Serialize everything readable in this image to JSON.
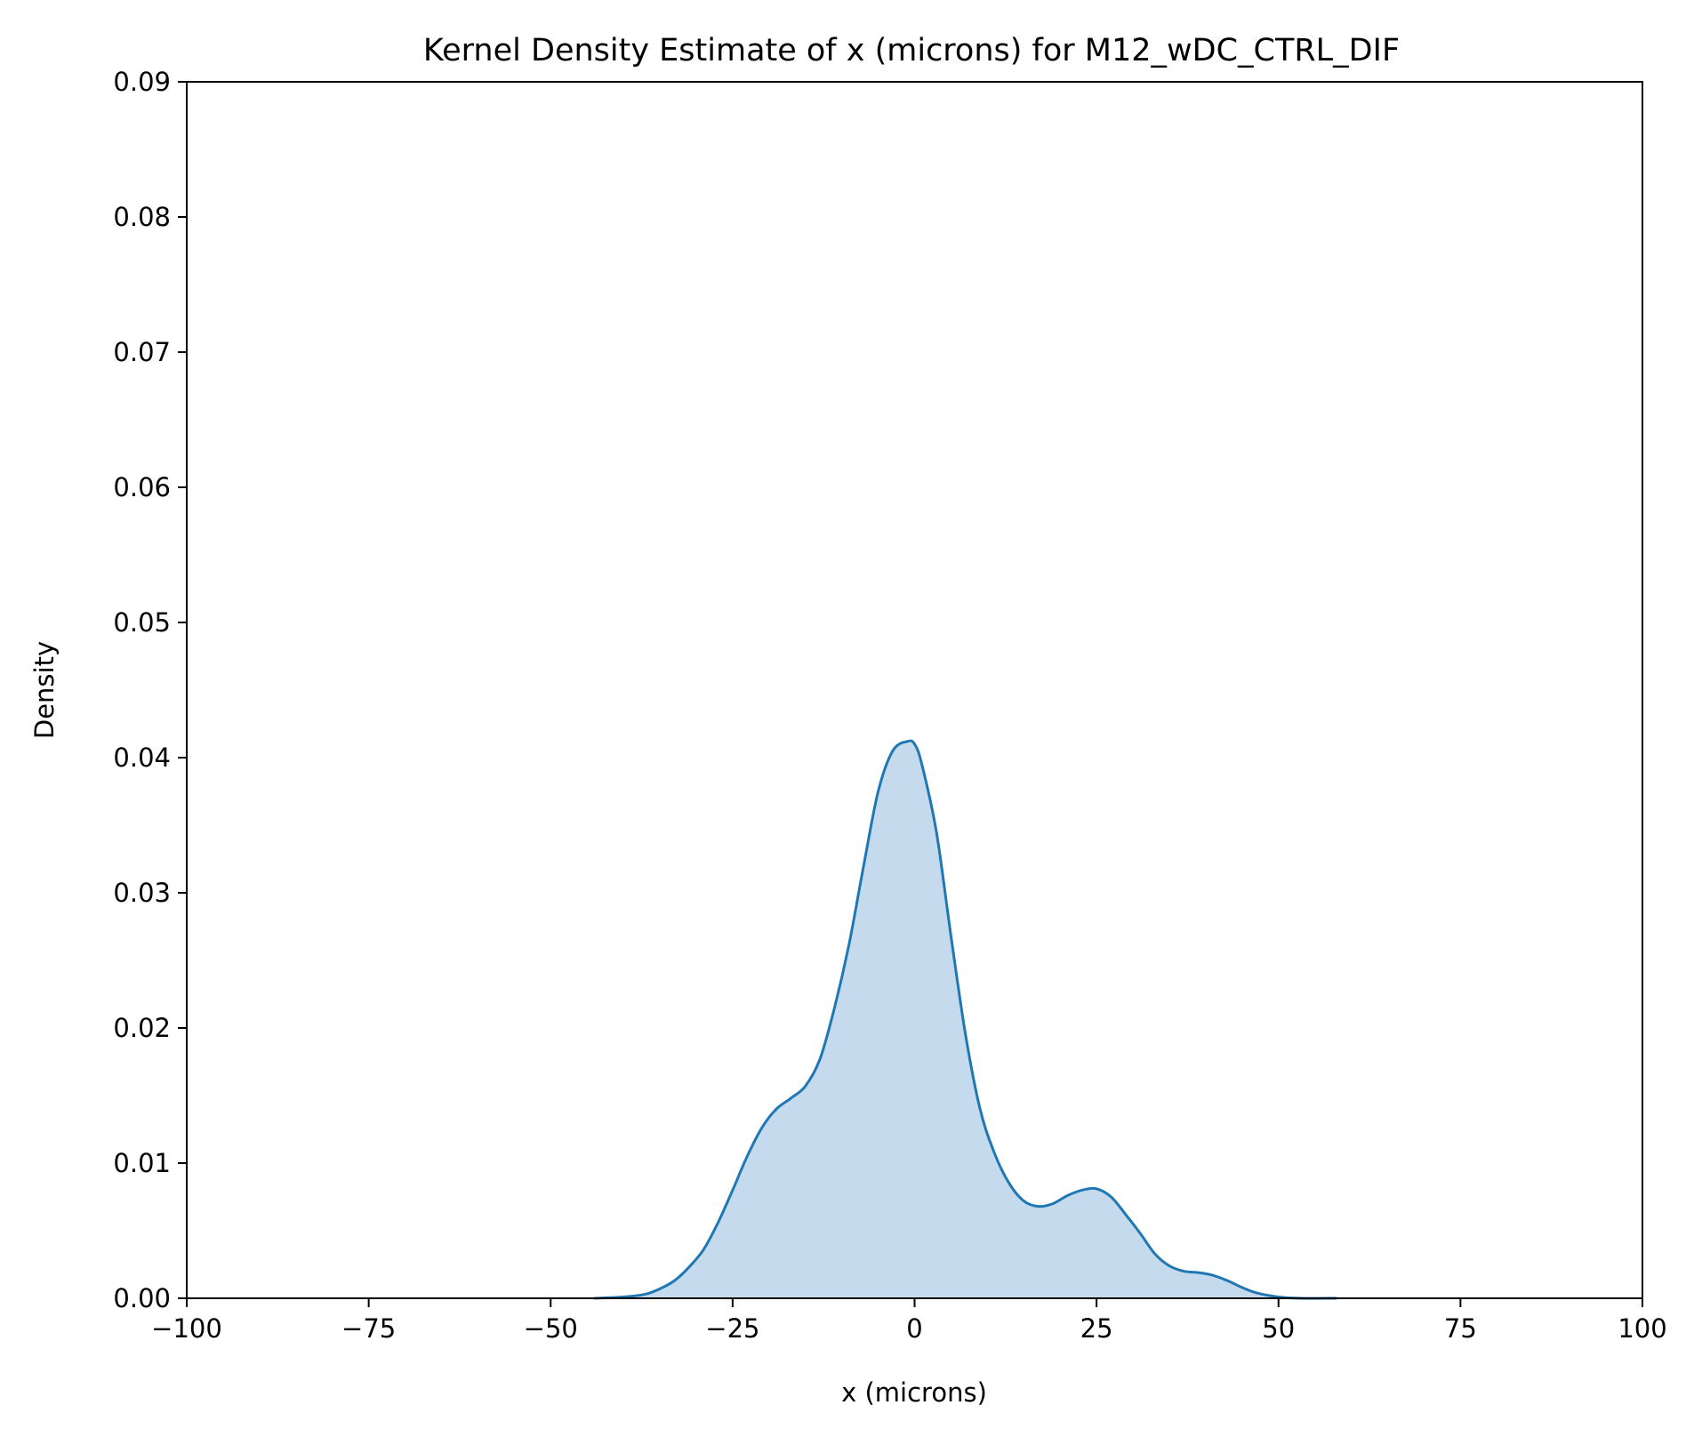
{
  "chart_data": {
    "type": "area",
    "title": "Kernel Density Estimate of x (microns) for M12_wDC_CTRL_DIF",
    "xlabel": "x (microns)",
    "ylabel": "Density",
    "xlim": [
      -100,
      100
    ],
    "ylim": [
      0,
      0.09
    ],
    "xticks": [
      -100,
      -75,
      -50,
      -25,
      0,
      25,
      50,
      75,
      100
    ],
    "xtick_labels": [
      "−100",
      "−75",
      "−50",
      "−25",
      "0",
      "25",
      "50",
      "75",
      "100"
    ],
    "yticks": [
      0,
      0.01,
      0.02,
      0.03,
      0.04,
      0.05,
      0.06,
      0.07,
      0.08,
      0.09
    ],
    "ytick_labels": [
      "0.00",
      "0.01",
      "0.02",
      "0.03",
      "0.04",
      "0.05",
      "0.06",
      "0.07",
      "0.08",
      "0.09"
    ],
    "grid": false,
    "colors": {
      "line": "#1f77b4",
      "fill": "#c5dbed"
    },
    "series": [
      {
        "x": [
          -44,
          -40,
          -37,
          -35,
          -33,
          -31,
          -29,
          -27,
          -25,
          -23,
          -21,
          -19,
          -17,
          -15,
          -13,
          -11,
          -9,
          -7,
          -5,
          -3,
          -1,
          0,
          1,
          3,
          5,
          7,
          9,
          11,
          13,
          15,
          17,
          19,
          21,
          23,
          25,
          27,
          29,
          31,
          33,
          35,
          37,
          39,
          41,
          43,
          45,
          47,
          50,
          53,
          58
        ],
        "y": [
          0.0,
          0.0001,
          0.0003,
          0.0007,
          0.0013,
          0.0023,
          0.0036,
          0.0056,
          0.008,
          0.0105,
          0.0126,
          0.014,
          0.0148,
          0.0157,
          0.0177,
          0.0215,
          0.0262,
          0.032,
          0.0375,
          0.0405,
          0.0412,
          0.041,
          0.0395,
          0.0345,
          0.0268,
          0.0195,
          0.014,
          0.0107,
          0.0085,
          0.0072,
          0.0068,
          0.007,
          0.0076,
          0.008,
          0.0081,
          0.0075,
          0.0062,
          0.0048,
          0.0033,
          0.0024,
          0.002,
          0.0019,
          0.0017,
          0.0013,
          0.0008,
          0.0004,
          0.0001,
          0.0,
          0.0
        ]
      }
    ]
  }
}
